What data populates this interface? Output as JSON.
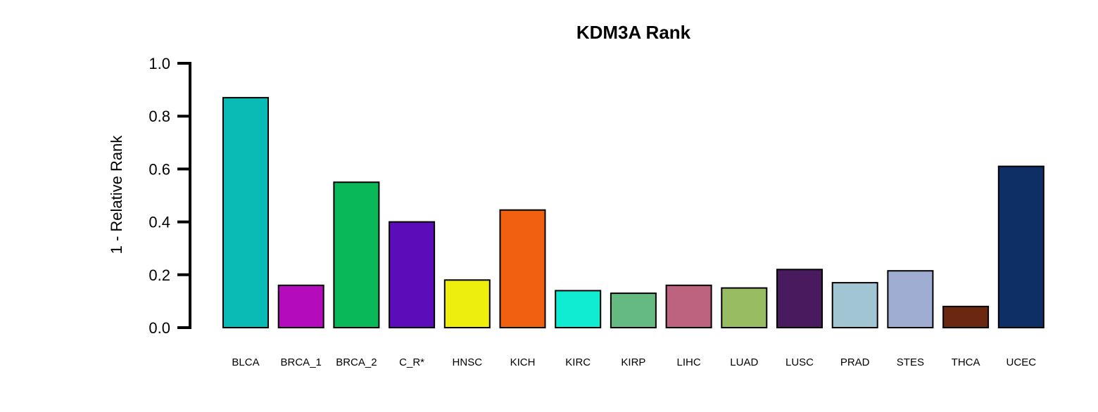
{
  "chart_data": {
    "type": "bar",
    "title": "KDM3A Rank",
    "xlabel": "",
    "ylabel": "1 - Relative Rank",
    "ylim": [
      0,
      1.0
    ],
    "y_ticks": [
      "0.0",
      "0.2",
      "0.4",
      "0.6",
      "0.8",
      "1.0"
    ],
    "grid": false,
    "legend": "none",
    "categories": [
      "BLCA",
      "BRCA_1",
      "BRCA_2",
      "C_R*",
      "HNSC",
      "KICH",
      "KIRC",
      "KIRP",
      "LIHC",
      "LUAD",
      "LUSC",
      "PRAD",
      "STES",
      "THCA",
      "UCEC"
    ],
    "values": [
      0.87,
      0.16,
      0.55,
      0.4,
      0.18,
      0.445,
      0.14,
      0.13,
      0.16,
      0.15,
      0.22,
      0.17,
      0.215,
      0.08,
      0.61
    ],
    "colors": [
      "#0ABAB5",
      "#B40CBD",
      "#09B859",
      "#5C0CB8",
      "#EEEE0C",
      "#F06010",
      "#10ECD2",
      "#64BA80",
      "#BD627F",
      "#97BC61",
      "#491A5E",
      "#A2C5D4",
      "#9FADD3",
      "#6B2710",
      "#0E2F66"
    ]
  }
}
